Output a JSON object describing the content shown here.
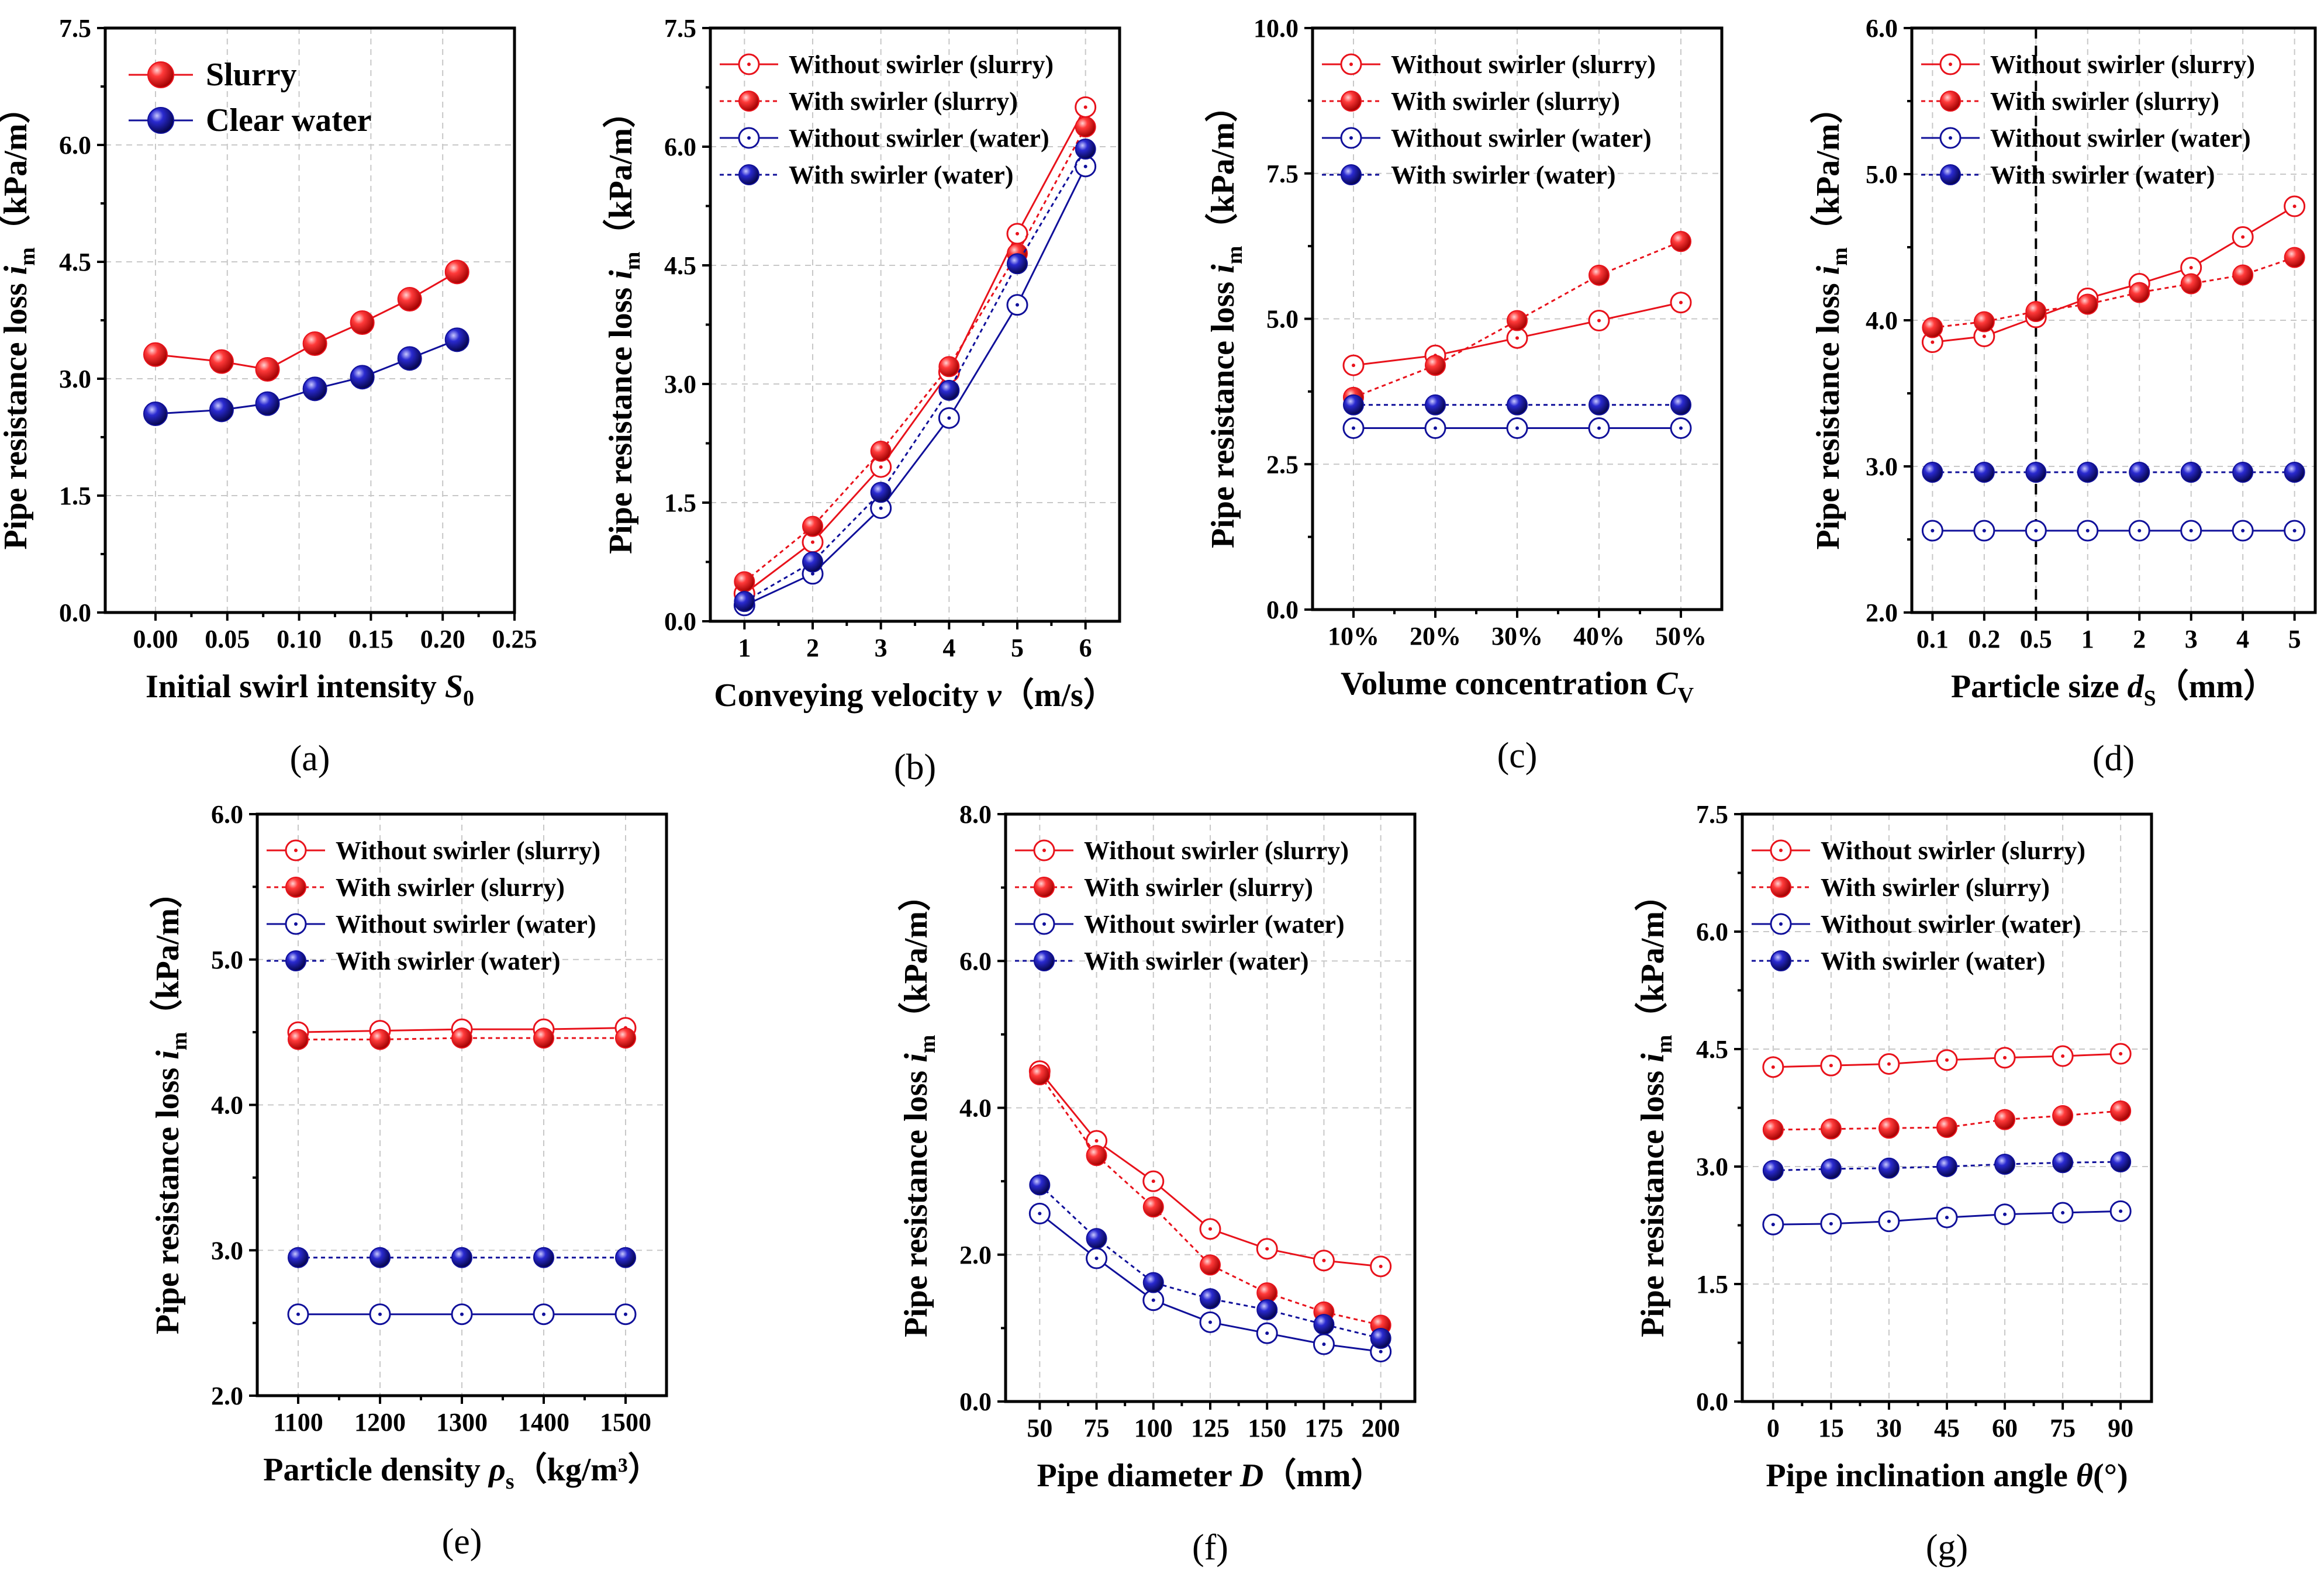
{
  "colors": {
    "red": "#e8121b",
    "blue": "#10109a",
    "frame": "#000000",
    "grid": "#c8c8c8"
  },
  "legend_labels": {
    "slurry": "Slurry",
    "water": "Clear water",
    "wo_slurry": "Without swirler (slurry)",
    "w_slurry": "With swirler (slurry)",
    "wo_water": "Without swirler (water)",
    "w_water": "With swirler (water)"
  },
  "ylabel": {
    "text": "Pipe resistance loss",
    "var": "i",
    "sub": "m",
    "unit": "（kPa/m）"
  },
  "chart_data": [
    {
      "id": "a",
      "panel_label": "(a)",
      "type": "line",
      "xlabel": {
        "text": "Initial swirl intensity",
        "var": "S",
        "sub": "0",
        "unit": ""
      },
      "x_scale": "linear",
      "xlim": [
        -0.035,
        0.25
      ],
      "xticks": [
        0,
        0.05,
        0.1,
        0.15,
        0.2,
        0.25
      ],
      "xtick_labels": [
        "0.00",
        "0.05",
        "0.10",
        "0.15",
        "0.20",
        "0.25"
      ],
      "ylim": [
        0,
        7.5
      ],
      "yticks": [
        0,
        1.5,
        3,
        4.5,
        6,
        7.5
      ],
      "ytick_labels": [
        "0.0",
        "1.5",
        "3.0",
        "4.5",
        "6.0",
        "7.5"
      ],
      "legend_placement": "top-left",
      "legend_style": "large",
      "series": [
        {
          "name": "Slurry",
          "key": "slurry",
          "color": "red",
          "marker": "filled",
          "dashed": false,
          "x": [
            0,
            0.046,
            0.078,
            0.111,
            0.144,
            0.177,
            0.21
          ],
          "y": [
            3.31,
            3.22,
            3.12,
            3.45,
            3.72,
            4.02,
            4.37
          ]
        },
        {
          "name": "Clear water",
          "key": "water",
          "color": "blue",
          "marker": "filled",
          "dashed": false,
          "x": [
            0,
            0.046,
            0.078,
            0.111,
            0.144,
            0.177,
            0.21
          ],
          "y": [
            2.55,
            2.6,
            2.68,
            2.87,
            3.02,
            3.26,
            3.5
          ]
        }
      ]
    },
    {
      "id": "b",
      "panel_label": "(b)",
      "type": "line",
      "xlabel": {
        "text": "Conveying velocity",
        "var": "v",
        "sub": "",
        "unit": "（m/s）"
      },
      "x_scale": "linear",
      "xlim": [
        0.5,
        6.5
      ],
      "xticks": [
        1,
        2,
        3,
        4,
        5,
        6
      ],
      "xtick_labels": [
        "1",
        "2",
        "3",
        "4",
        "5",
        "6"
      ],
      "ylim": [
        0,
        7.5
      ],
      "yticks": [
        0,
        1.5,
        3,
        4.5,
        6,
        7.5
      ],
      "ytick_labels": [
        "0.0",
        "1.5",
        "3.0",
        "4.5",
        "6.0",
        "7.5"
      ],
      "legend_placement": "top-left",
      "legend_style": "small",
      "series": [
        {
          "name": "Without swirler (slurry)",
          "key": "wo_slurry",
          "color": "red",
          "marker": "open",
          "dashed": false,
          "x": [
            1,
            2,
            3,
            4,
            5,
            6
          ],
          "y": [
            0.35,
            1.0,
            1.95,
            3.15,
            4.9,
            6.5
          ]
        },
        {
          "name": "With swirler (slurry)",
          "key": "w_slurry",
          "color": "red",
          "marker": "filled",
          "dashed": true,
          "x": [
            1,
            2,
            3,
            4,
            5,
            6
          ],
          "y": [
            0.5,
            1.2,
            2.15,
            3.22,
            4.65,
            6.25
          ]
        },
        {
          "name": "Without swirler (water)",
          "key": "wo_water",
          "color": "blue",
          "marker": "open",
          "dashed": false,
          "x": [
            1,
            2,
            3,
            4,
            5,
            6
          ],
          "y": [
            0.2,
            0.6,
            1.43,
            2.57,
            4.0,
            5.75
          ]
        },
        {
          "name": "With swirler (water)",
          "key": "w_water",
          "color": "blue",
          "marker": "filled",
          "dashed": true,
          "x": [
            1,
            2,
            3,
            4,
            5,
            6
          ],
          "y": [
            0.25,
            0.75,
            1.63,
            2.92,
            4.52,
            5.97
          ]
        }
      ]
    },
    {
      "id": "c",
      "panel_label": "(c)",
      "type": "line",
      "xlabel": {
        "text": "Volume concentration",
        "var": "C",
        "sub": "V",
        "unit": ""
      },
      "x_scale": "linear",
      "xlim": [
        0.5,
        5.5
      ],
      "xticks": [
        1,
        2,
        3,
        4,
        5
      ],
      "xtick_labels": [
        "10%",
        "20%",
        "30%",
        "40%",
        "50%"
      ],
      "ylim": [
        0,
        10
      ],
      "yticks": [
        0,
        2.5,
        5,
        7.5,
        10
      ],
      "ytick_labels": [
        "0.0",
        "2.5",
        "5.0",
        "7.5",
        "10.0"
      ],
      "legend_placement": "top-left",
      "legend_style": "small",
      "series": [
        {
          "name": "Without swirler (slurry)",
          "key": "wo_slurry",
          "color": "red",
          "marker": "open",
          "dashed": false,
          "x": [
            1,
            2,
            3,
            4,
            5
          ],
          "y": [
            4.2,
            4.37,
            4.67,
            4.97,
            5.28
          ]
        },
        {
          "name": "With swirler (slurry)",
          "key": "w_slurry",
          "color": "red",
          "marker": "filled",
          "dashed": true,
          "x": [
            1,
            2,
            3,
            4,
            5
          ],
          "y": [
            3.65,
            4.2,
            4.97,
            5.75,
            6.33
          ]
        },
        {
          "name": "Without swirler (water)",
          "key": "wo_water",
          "color": "blue",
          "marker": "open",
          "dashed": false,
          "x": [
            1,
            2,
            3,
            4,
            5
          ],
          "y": [
            3.12,
            3.12,
            3.12,
            3.12,
            3.12
          ]
        },
        {
          "name": "With swirler (water)",
          "key": "w_water",
          "color": "blue",
          "marker": "filled",
          "dashed": true,
          "x": [
            1,
            2,
            3,
            4,
            5
          ],
          "y": [
            3.52,
            3.52,
            3.52,
            3.52,
            3.52
          ]
        }
      ]
    },
    {
      "id": "d",
      "panel_label": "(d)",
      "type": "line",
      "xlabel": {
        "text": "Particle size",
        "var": "d",
        "sub": "S",
        "unit": "（mm）"
      },
      "x_scale": "categorical",
      "xlim": [
        0.6,
        8.4
      ],
      "xticks": [
        1,
        2,
        3,
        4,
        5,
        6,
        7,
        8
      ],
      "xtick_labels": [
        "0.1",
        "0.2",
        "0.5",
        "1",
        "2",
        "3",
        "4",
        "5"
      ],
      "ylim": [
        2,
        6
      ],
      "yticks": [
        2,
        3,
        4,
        5,
        6
      ],
      "ytick_labels": [
        "2.0",
        "3.0",
        "4.0",
        "5.0",
        "6.0"
      ],
      "reference_line_x": 3,
      "legend_placement": "top-left",
      "legend_style": "small",
      "series": [
        {
          "name": "Without swirler (slurry)",
          "key": "wo_slurry",
          "color": "red",
          "marker": "open",
          "dashed": false,
          "x": [
            1,
            2,
            3,
            4,
            5,
            6,
            7,
            8
          ],
          "y": [
            3.85,
            3.89,
            4.02,
            4.15,
            4.25,
            4.36,
            4.57,
            4.78
          ]
        },
        {
          "name": "With swirler (slurry)",
          "key": "w_slurry",
          "color": "red",
          "marker": "filled",
          "dashed": true,
          "x": [
            1,
            2,
            3,
            4,
            5,
            6,
            7,
            8
          ],
          "y": [
            3.95,
            3.99,
            4.06,
            4.11,
            4.19,
            4.25,
            4.31,
            4.43
          ]
        },
        {
          "name": "Without swirler (water)",
          "key": "wo_water",
          "color": "blue",
          "marker": "open",
          "dashed": false,
          "x": [
            1,
            2,
            3,
            4,
            5,
            6,
            7,
            8
          ],
          "y": [
            2.56,
            2.56,
            2.56,
            2.56,
            2.56,
            2.56,
            2.56,
            2.56
          ]
        },
        {
          "name": "With swirler (water)",
          "key": "w_water",
          "color": "blue",
          "marker": "filled",
          "dashed": true,
          "x": [
            1,
            2,
            3,
            4,
            5,
            6,
            7,
            8
          ],
          "y": [
            2.96,
            2.96,
            2.96,
            2.96,
            2.96,
            2.96,
            2.96,
            2.96
          ]
        }
      ]
    },
    {
      "id": "e",
      "panel_label": "(e)",
      "type": "line",
      "xlabel": {
        "text": "Particle density",
        "var": "ρ",
        "sub": "s",
        "unit": "（kg/m³）"
      },
      "x_scale": "linear",
      "xlim": [
        1050,
        1550
      ],
      "xticks": [
        1100,
        1200,
        1300,
        1400,
        1500
      ],
      "xtick_labels": [
        "1100",
        "1200",
        "1300",
        "1400",
        "1500"
      ],
      "ylim": [
        2,
        6
      ],
      "yticks": [
        2,
        3,
        4,
        5,
        6
      ],
      "ytick_labels": [
        "2.0",
        "3.0",
        "4.0",
        "5.0",
        "6.0"
      ],
      "legend_placement": "top-left",
      "legend_style": "small",
      "series": [
        {
          "name": "Without swirler (slurry)",
          "key": "wo_slurry",
          "color": "red",
          "marker": "open",
          "dashed": false,
          "x": [
            1100,
            1200,
            1300,
            1400,
            1500
          ],
          "y": [
            4.5,
            4.51,
            4.52,
            4.52,
            4.53
          ]
        },
        {
          "name": "With swirler (slurry)",
          "key": "w_slurry",
          "color": "red",
          "marker": "filled",
          "dashed": true,
          "x": [
            1100,
            1200,
            1300,
            1400,
            1500
          ],
          "y": [
            4.45,
            4.45,
            4.46,
            4.46,
            4.46
          ]
        },
        {
          "name": "Without swirler (water)",
          "key": "wo_water",
          "color": "blue",
          "marker": "open",
          "dashed": false,
          "x": [
            1100,
            1200,
            1300,
            1400,
            1500
          ],
          "y": [
            2.56,
            2.56,
            2.56,
            2.56,
            2.56
          ]
        },
        {
          "name": "With swirler (water)",
          "key": "w_water",
          "color": "blue",
          "marker": "filled",
          "dashed": true,
          "x": [
            1100,
            1200,
            1300,
            1400,
            1500
          ],
          "y": [
            2.95,
            2.95,
            2.95,
            2.95,
            2.95
          ]
        }
      ]
    },
    {
      "id": "f",
      "panel_label": "(f)",
      "type": "line",
      "xlabel": {
        "text": "Pipe diameter",
        "var": "D",
        "sub": "",
        "unit": "（mm）"
      },
      "x_scale": "linear",
      "xlim": [
        35,
        215
      ],
      "xticks": [
        50,
        75,
        100,
        125,
        150,
        175,
        200
      ],
      "xtick_labels": [
        "50",
        "75",
        "100",
        "125",
        "150",
        "175",
        "200"
      ],
      "ylim": [
        0,
        8
      ],
      "yticks": [
        0,
        2,
        4,
        6,
        8
      ],
      "ytick_labels": [
        "0.0",
        "2.0",
        "4.0",
        "6.0",
        "8.0"
      ],
      "legend_placement": "top-left",
      "legend_style": "small",
      "series": [
        {
          "name": "Without swirler (slurry)",
          "key": "wo_slurry",
          "color": "red",
          "marker": "open",
          "dashed": false,
          "x": [
            50,
            75,
            100,
            125,
            150,
            175,
            200
          ],
          "y": [
            4.5,
            3.55,
            3.0,
            2.35,
            2.08,
            1.92,
            1.84
          ]
        },
        {
          "name": "With swirler (slurry)",
          "key": "w_slurry",
          "color": "red",
          "marker": "filled",
          "dashed": true,
          "x": [
            50,
            75,
            100,
            125,
            150,
            175,
            200
          ],
          "y": [
            4.45,
            3.35,
            2.65,
            1.86,
            1.48,
            1.22,
            1.04
          ]
        },
        {
          "name": "Without swirler (water)",
          "key": "wo_water",
          "color": "blue",
          "marker": "open",
          "dashed": false,
          "x": [
            50,
            75,
            100,
            125,
            150,
            175,
            200
          ],
          "y": [
            2.56,
            1.95,
            1.38,
            1.08,
            0.93,
            0.78,
            0.68
          ]
        },
        {
          "name": "With swirler (water)",
          "key": "w_water",
          "color": "blue",
          "marker": "filled",
          "dashed": true,
          "x": [
            50,
            75,
            100,
            125,
            150,
            175,
            200
          ],
          "y": [
            2.95,
            2.22,
            1.62,
            1.4,
            1.25,
            1.05,
            0.86
          ]
        }
      ]
    },
    {
      "id": "g",
      "panel_label": "(g)",
      "type": "line",
      "xlabel": {
        "text": "Pipe inclination angle",
        "var": "θ",
        "sub": "",
        "unit": "(°)"
      },
      "x_scale": "linear",
      "xlim": [
        -8,
        98
      ],
      "xticks": [
        0,
        15,
        30,
        45,
        60,
        75,
        90
      ],
      "xtick_labels": [
        "0",
        "15",
        "30",
        "45",
        "60",
        "75",
        "90"
      ],
      "ylim": [
        0,
        7.5
      ],
      "yticks": [
        0,
        1.5,
        3,
        4.5,
        6,
        7.5
      ],
      "ytick_labels": [
        "0.0",
        "1.5",
        "3.0",
        "4.5",
        "6.0",
        "7.5"
      ],
      "legend_placement": "top-left",
      "legend_style": "small",
      "series": [
        {
          "name": "Without swirler (slurry)",
          "key": "wo_slurry",
          "color": "red",
          "marker": "open",
          "dashed": false,
          "x": [
            0,
            15,
            30,
            45,
            60,
            75,
            90
          ],
          "y": [
            4.27,
            4.29,
            4.31,
            4.36,
            4.39,
            4.41,
            4.44
          ]
        },
        {
          "name": "With swirler (slurry)",
          "key": "w_slurry",
          "color": "red",
          "marker": "filled",
          "dashed": true,
          "x": [
            0,
            15,
            30,
            45,
            60,
            75,
            90
          ],
          "y": [
            3.47,
            3.48,
            3.49,
            3.5,
            3.6,
            3.65,
            3.71
          ]
        },
        {
          "name": "Without swirler (water)",
          "key": "wo_water",
          "color": "blue",
          "marker": "open",
          "dashed": false,
          "x": [
            0,
            15,
            30,
            45,
            60,
            75,
            90
          ],
          "y": [
            2.26,
            2.27,
            2.3,
            2.35,
            2.39,
            2.41,
            2.43
          ]
        },
        {
          "name": "With swirler (water)",
          "key": "w_water",
          "color": "blue",
          "marker": "filled",
          "dashed": true,
          "x": [
            0,
            15,
            30,
            45,
            60,
            75,
            90
          ],
          "y": [
            2.95,
            2.97,
            2.98,
            3.0,
            3.03,
            3.05,
            3.06
          ]
        }
      ]
    }
  ]
}
